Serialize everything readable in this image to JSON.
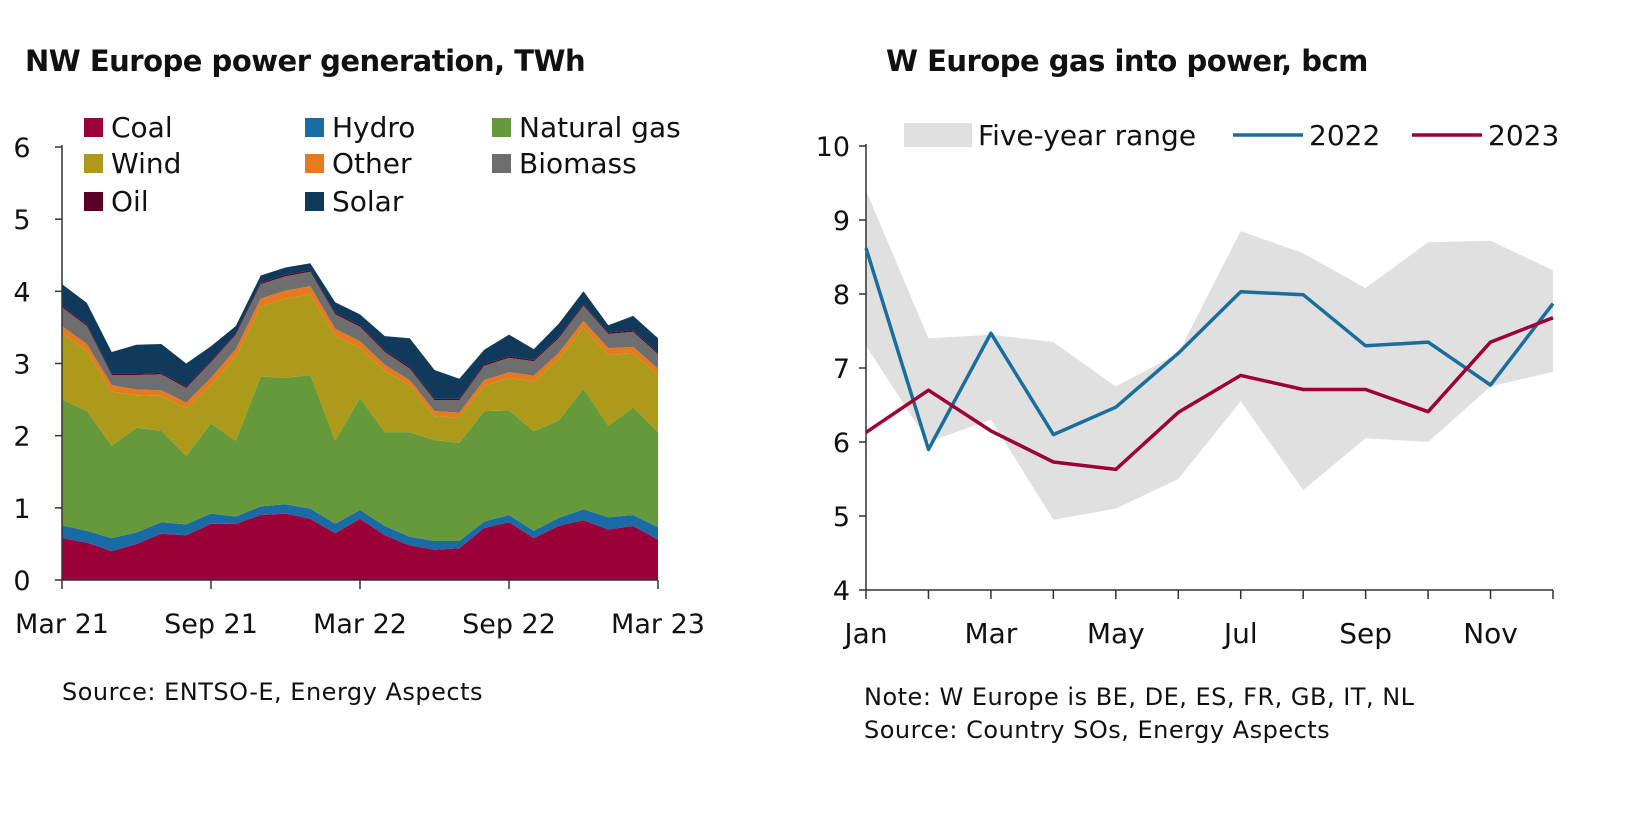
{
  "chart_data": [
    {
      "type": "area",
      "title": "NW Europe power generation, TWh",
      "xlabel": "",
      "ylabel": "",
      "stacked": true,
      "ylim": [
        0,
        6
      ],
      "yticks": [
        0,
        1,
        2,
        3,
        4,
        5,
        6
      ],
      "xtick_labels": [
        "Mar 21",
        "Sep 21",
        "Mar 22",
        "Sep 22",
        "Mar 23"
      ],
      "x": [
        "Mar 21",
        "Apr 21",
        "May 21",
        "Jun 21",
        "Jul 21",
        "Aug 21",
        "Sep 21",
        "Oct 21",
        "Nov 21",
        "Dec 21",
        "Jan 22",
        "Feb 22",
        "Mar 22",
        "Apr 22",
        "May 22",
        "Jun 22",
        "Jul 22",
        "Aug 22",
        "Sep 22",
        "Oct 22",
        "Nov 22",
        "Dec 22",
        "Jan 23",
        "Feb 23",
        "Mar 23"
      ],
      "legend_position": "top",
      "series": [
        {
          "name": "Coal",
          "color": "#9b0039",
          "values": [
            0.58,
            0.52,
            0.4,
            0.5,
            0.64,
            0.62,
            0.78,
            0.78,
            0.9,
            0.92,
            0.85,
            0.65,
            0.85,
            0.62,
            0.48,
            0.42,
            0.44,
            0.72,
            0.8,
            0.58,
            0.75,
            0.83,
            0.7,
            0.75,
            0.56
          ]
        },
        {
          "name": "Hydro",
          "color": "#1a6aa6",
          "values": [
            0.18,
            0.16,
            0.18,
            0.16,
            0.16,
            0.15,
            0.14,
            0.1,
            0.12,
            0.13,
            0.14,
            0.13,
            0.12,
            0.13,
            0.12,
            0.12,
            0.1,
            0.09,
            0.1,
            0.1,
            0.11,
            0.15,
            0.17,
            0.15,
            0.17
          ]
        },
        {
          "name": "Natural gas",
          "color": "#66993a",
          "values": [
            1.74,
            1.66,
            1.28,
            1.45,
            1.27,
            0.95,
            1.25,
            1.05,
            1.8,
            1.75,
            1.85,
            1.15,
            1.55,
            1.3,
            1.45,
            1.4,
            1.36,
            1.53,
            1.45,
            1.38,
            1.35,
            1.67,
            1.27,
            1.49,
            1.32
          ]
        },
        {
          "name": "Wind",
          "color": "#ad9a1b",
          "values": [
            0.92,
            0.84,
            0.75,
            0.45,
            0.48,
            0.66,
            0.53,
            1.17,
            0.97,
            1.1,
            1.12,
            1.45,
            0.7,
            0.85,
            0.65,
            0.33,
            0.35,
            0.35,
            0.45,
            0.69,
            0.85,
            0.85,
            0.98,
            0.75,
            0.79
          ]
        },
        {
          "name": "Other",
          "color": "#e87a1e",
          "values": [
            0.1,
            0.09,
            0.09,
            0.08,
            0.08,
            0.08,
            0.1,
            0.1,
            0.11,
            0.11,
            0.11,
            0.1,
            0.09,
            0.08,
            0.07,
            0.07,
            0.07,
            0.08,
            0.08,
            0.08,
            0.09,
            0.09,
            0.09,
            0.09,
            0.09
          ]
        },
        {
          "name": "Biomass",
          "color": "#6e6e6e",
          "values": [
            0.26,
            0.25,
            0.14,
            0.2,
            0.22,
            0.2,
            0.22,
            0.2,
            0.2,
            0.2,
            0.2,
            0.2,
            0.2,
            0.18,
            0.16,
            0.15,
            0.17,
            0.2,
            0.2,
            0.2,
            0.2,
            0.21,
            0.2,
            0.21,
            0.2
          ]
        },
        {
          "name": "Oil",
          "color": "#5a0026",
          "values": [
            0.02,
            0.02,
            0.02,
            0.02,
            0.02,
            0.02,
            0.02,
            0.02,
            0.02,
            0.02,
            0.02,
            0.02,
            0.02,
            0.02,
            0.02,
            0.02,
            0.02,
            0.02,
            0.02,
            0.02,
            0.02,
            0.02,
            0.02,
            0.02,
            0.02
          ]
        },
        {
          "name": "Solar",
          "color": "#0f3a5c",
          "values": [
            0.3,
            0.3,
            0.3,
            0.4,
            0.4,
            0.32,
            0.2,
            0.1,
            0.1,
            0.1,
            0.1,
            0.15,
            0.15,
            0.2,
            0.4,
            0.4,
            0.28,
            0.2,
            0.3,
            0.15,
            0.18,
            0.18,
            0.1,
            0.2,
            0.2
          ]
        }
      ]
    },
    {
      "type": "line",
      "title": "W Europe gas into power, bcm",
      "xlabel": "",
      "ylabel": "",
      "ylim": [
        4,
        10
      ],
      "yticks": [
        4,
        5,
        6,
        7,
        8,
        9,
        10
      ],
      "x": [
        "Jan",
        "Feb",
        "Mar",
        "Apr",
        "May",
        "Jun",
        "Jul",
        "Aug",
        "Sep",
        "Oct",
        "Nov",
        "Dec"
      ],
      "xtick_labels": [
        "Jan",
        "Mar",
        "May",
        "Jul",
        "Sep",
        "Nov"
      ],
      "legend_position": "top",
      "band": {
        "name": "Five-year range",
        "color": "#e0e0e0",
        "low": [
          7.3,
          6.0,
          6.3,
          4.95,
          5.1,
          5.5,
          6.55,
          5.35,
          6.05,
          6.0,
          6.75,
          6.95
        ],
        "high": [
          9.4,
          7.4,
          7.45,
          7.35,
          6.75,
          7.2,
          8.85,
          8.55,
          8.08,
          8.7,
          8.72,
          8.32
        ]
      },
      "series": [
        {
          "name": "2022",
          "color": "#1a6e9c",
          "values": [
            8.62,
            5.9,
            7.47,
            6.1,
            6.47,
            7.2,
            8.03,
            7.99,
            7.3,
            7.35,
            6.77,
            7.87
          ]
        },
        {
          "name": "2023",
          "color": "#9b0039",
          "values": [
            6.13,
            6.7,
            6.15,
            5.73,
            5.63,
            6.4,
            6.9,
            6.71,
            6.71,
            6.41,
            7.35,
            7.68
          ]
        }
      ]
    }
  ],
  "notes": {
    "left_source": "Source: ENTSO-E, Energy Aspects",
    "right_note": "Note: W Europe is BE, DE, ES, FR, GB, IT, NL",
    "right_source": "Source: Country SOs, Energy Aspects"
  }
}
